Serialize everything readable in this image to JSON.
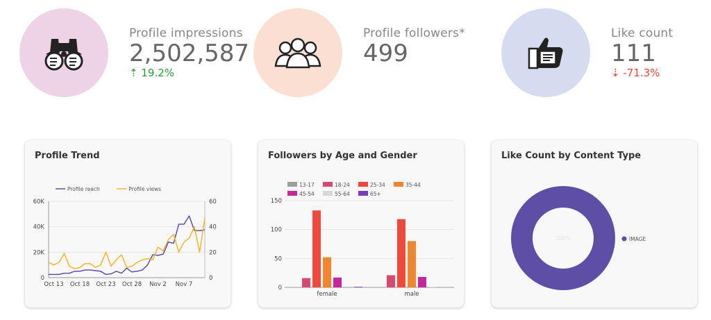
{
  "kpis": [
    {
      "label": "Profile impressions",
      "value": "2,502,587",
      "delta": "19.2%",
      "direction": "up",
      "icon": "binoculars-icon",
      "circle_color": "#eed3e7"
    },
    {
      "label": "Profile followers*",
      "value": "499",
      "delta": "",
      "direction": "none",
      "icon": "group-icon",
      "circle_color": "#fbdfd3"
    },
    {
      "label": "Like count",
      "value": "111",
      "delta": "-71.3%",
      "direction": "down",
      "icon": "thumbs-up-icon",
      "circle_color": "#d6dcef"
    }
  ],
  "colors": {
    "up": "#2e9c3c",
    "down": "#e8473b"
  },
  "chart_data": [
    {
      "type": "line",
      "title": "Profile Trend",
      "x": [
        "Oct 12",
        "Oct 13",
        "Oct 14",
        "Oct 15",
        "Oct 16",
        "Oct 17",
        "Oct 18",
        "Oct 19",
        "Oct 20",
        "Oct 21",
        "Oct 22",
        "Oct 23",
        "Oct 24",
        "Oct 25",
        "Oct 26",
        "Oct 27",
        "Oct 28",
        "Oct 29",
        "Oct 30",
        "Oct 31",
        "Nov 1",
        "Nov 2",
        "Nov 3",
        "Nov 4",
        "Nov 5",
        "Nov 6",
        "Nov 7",
        "Nov 8",
        "Nov 9",
        "Nov 10",
        "Nov 11"
      ],
      "x_tick_labels": [
        "Oct 13",
        "Oct 18",
        "Oct 23",
        "Oct 28",
        "Nov 2",
        "Nov 7"
      ],
      "series": [
        {
          "name": "Profile reach",
          "axis": "left",
          "color": "#5c4fa8",
          "values": [
            2500,
            2500,
            2500,
            3500,
            3500,
            5000,
            5000,
            6000,
            6000,
            5500,
            5000,
            2500,
            3000,
            5000,
            3500,
            7500,
            4500,
            5000,
            6000,
            10000,
            18000,
            17500,
            18500,
            28000,
            27000,
            42000,
            42000,
            48500,
            37000,
            37000,
            37500
          ]
        },
        {
          "name": "Profile views",
          "axis": "right",
          "color": "#f5b531",
          "values": [
            12,
            10,
            12,
            19,
            9,
            7,
            8,
            11,
            11,
            8,
            10,
            20,
            9,
            14,
            18,
            8,
            9,
            12,
            14,
            15,
            14,
            24,
            21,
            30,
            34,
            20,
            28,
            31,
            40,
            20,
            47
          ]
        }
      ],
      "ylim_left": [
        0,
        60000
      ],
      "y_ticks_left": [
        "0",
        "20K",
        "40K",
        "60K"
      ],
      "ylim_right": [
        0,
        60
      ],
      "y_ticks_right": [
        "0",
        "20",
        "40",
        "60"
      ],
      "legend": "top-left"
    },
    {
      "type": "bar",
      "title": "Followers by Age and Gender",
      "categories": [
        "female",
        "male"
      ],
      "series": [
        {
          "name": "13-17",
          "color": "#9e9e9e",
          "values": [
            0,
            0
          ]
        },
        {
          "name": "18-24",
          "color": "#d64970",
          "values": [
            16,
            21
          ]
        },
        {
          "name": "25-34",
          "color": "#ee4a3c",
          "values": [
            133,
            118
          ]
        },
        {
          "name": "35-44",
          "color": "#f0862e",
          "values": [
            52,
            80
          ]
        },
        {
          "name": "45-54",
          "color": "#c4289b",
          "values": [
            17,
            18
          ]
        },
        {
          "name": "55-64",
          "color": "#d8d8d8",
          "values": [
            0,
            1
          ]
        },
        {
          "name": "65+",
          "color": "#7d3bb5",
          "values": [
            1,
            0
          ]
        }
      ],
      "ylim": [
        0,
        150
      ],
      "y_ticks": [
        "0",
        "50",
        "100",
        "150"
      ],
      "legend": "top"
    },
    {
      "type": "pie",
      "title": "Like Count by Content Type",
      "donut": true,
      "slices": [
        {
          "name": "IMAGE",
          "value": 100,
          "color": "#5f4ea6"
        }
      ],
      "center_label": "100%",
      "legend": "right"
    }
  ]
}
